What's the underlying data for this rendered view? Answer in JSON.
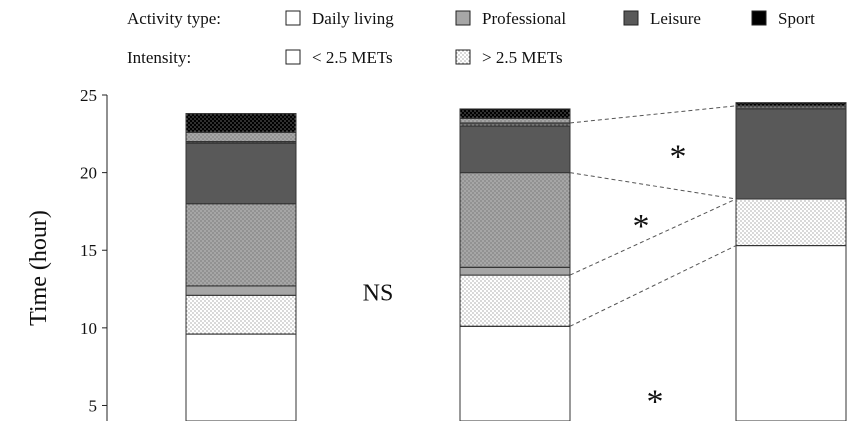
{
  "chart_data": {
    "type": "bar",
    "stacked": true,
    "ylabel": "Time (hour)",
    "ylim": [
      4,
      25
    ],
    "yticks": [
      5,
      10,
      15,
      20,
      25
    ],
    "grid": false,
    "legend": {
      "placement": "top",
      "rows": [
        {
          "title": "Activity type:",
          "items": [
            {
              "label": "Daily living",
              "color": "#ffffff",
              "pattern": "none"
            },
            {
              "label": "Professional",
              "color": "#a6a6a6",
              "pattern": "none"
            },
            {
              "label": "Leisure",
              "color": "#595959",
              "pattern": "none"
            },
            {
              "label": "Sport",
              "color": "#000000",
              "pattern": "none"
            }
          ]
        },
        {
          "title": "Intensity:",
          "items": [
            {
              "label": "< 2.5 METs",
              "color": "#ffffff",
              "pattern": "none"
            },
            {
              "label": "> 2.5 METs",
              "color": "#ffffff",
              "pattern": "dots"
            }
          ]
        }
      ]
    },
    "bars": [
      {
        "segments": [
          {
            "category": "Daily living",
            "intensity": "low",
            "from": 0,
            "to": 9.6
          },
          {
            "category": "Daily living",
            "intensity": "high",
            "from": 9.6,
            "to": 12.1
          },
          {
            "category": "Professional",
            "intensity": "low",
            "from": 12.1,
            "to": 12.7
          },
          {
            "category": "Professional",
            "intensity": "high",
            "from": 12.7,
            "to": 18.0
          },
          {
            "category": "Leisure",
            "intensity": "low",
            "from": 18.0,
            "to": 21.9
          },
          {
            "category": "Leisure",
            "intensity": "high",
            "from": 21.9,
            "to": 22.0
          },
          {
            "category": "Professional",
            "intensity": "high",
            "from": 22.0,
            "to": 22.6
          },
          {
            "category": "Sport",
            "intensity": "high",
            "from": 22.6,
            "to": 23.8
          }
        ]
      },
      {
        "segments": [
          {
            "category": "Daily living",
            "intensity": "low",
            "from": 0,
            "to": 10.1
          },
          {
            "category": "Daily living",
            "intensity": "high",
            "from": 10.1,
            "to": 13.4
          },
          {
            "category": "Professional",
            "intensity": "low",
            "from": 13.4,
            "to": 13.9
          },
          {
            "category": "Professional",
            "intensity": "high",
            "from": 13.9,
            "to": 20.0
          },
          {
            "category": "Leisure",
            "intensity": "low",
            "from": 20.0,
            "to": 23.0
          },
          {
            "category": "Leisure",
            "intensity": "high",
            "from": 23.0,
            "to": 23.2
          },
          {
            "category": "Professional",
            "intensity": "high",
            "from": 23.2,
            "to": 23.5
          },
          {
            "category": "Sport",
            "intensity": "high",
            "from": 23.5,
            "to": 24.1
          }
        ]
      },
      {
        "segments": [
          {
            "category": "Daily living",
            "intensity": "low",
            "from": 0,
            "to": 15.3
          },
          {
            "category": "Daily living",
            "intensity": "high",
            "from": 15.3,
            "to": 18.3
          },
          {
            "category": "Leisure",
            "intensity": "low",
            "from": 18.3,
            "to": 24.1
          },
          {
            "category": "Leisure",
            "intensity": "high",
            "from": 24.1,
            "to": 24.3
          },
          {
            "category": "Sport",
            "intensity": "high",
            "from": 24.3,
            "to": 24.5
          }
        ]
      }
    ],
    "connectors": [
      {
        "from_bar": 1,
        "to_bar": 2,
        "y_from": 10.1,
        "y_to": 15.3
      },
      {
        "from_bar": 1,
        "to_bar": 2,
        "y_from": 13.4,
        "y_to": 18.3
      },
      {
        "from_bar": 1,
        "to_bar": 2,
        "y_from": 20.0,
        "y_to": 18.3
      },
      {
        "from_bar": 1,
        "to_bar": 2,
        "y_from": 23.2,
        "y_to": 24.3
      }
    ],
    "annotations": [
      {
        "text": "NS",
        "x_between": [
          0,
          1
        ],
        "y": 12.4,
        "size": "large"
      },
      {
        "text": "*",
        "x_between": [
          1,
          2
        ],
        "y": 21.5,
        "size": "large"
      },
      {
        "text": "*",
        "x_between": [
          1,
          2
        ],
        "y": 17.0,
        "size": "large"
      },
      {
        "text": "*",
        "x_between": [
          1,
          2
        ],
        "y": 5.7,
        "size": "large"
      }
    ]
  }
}
